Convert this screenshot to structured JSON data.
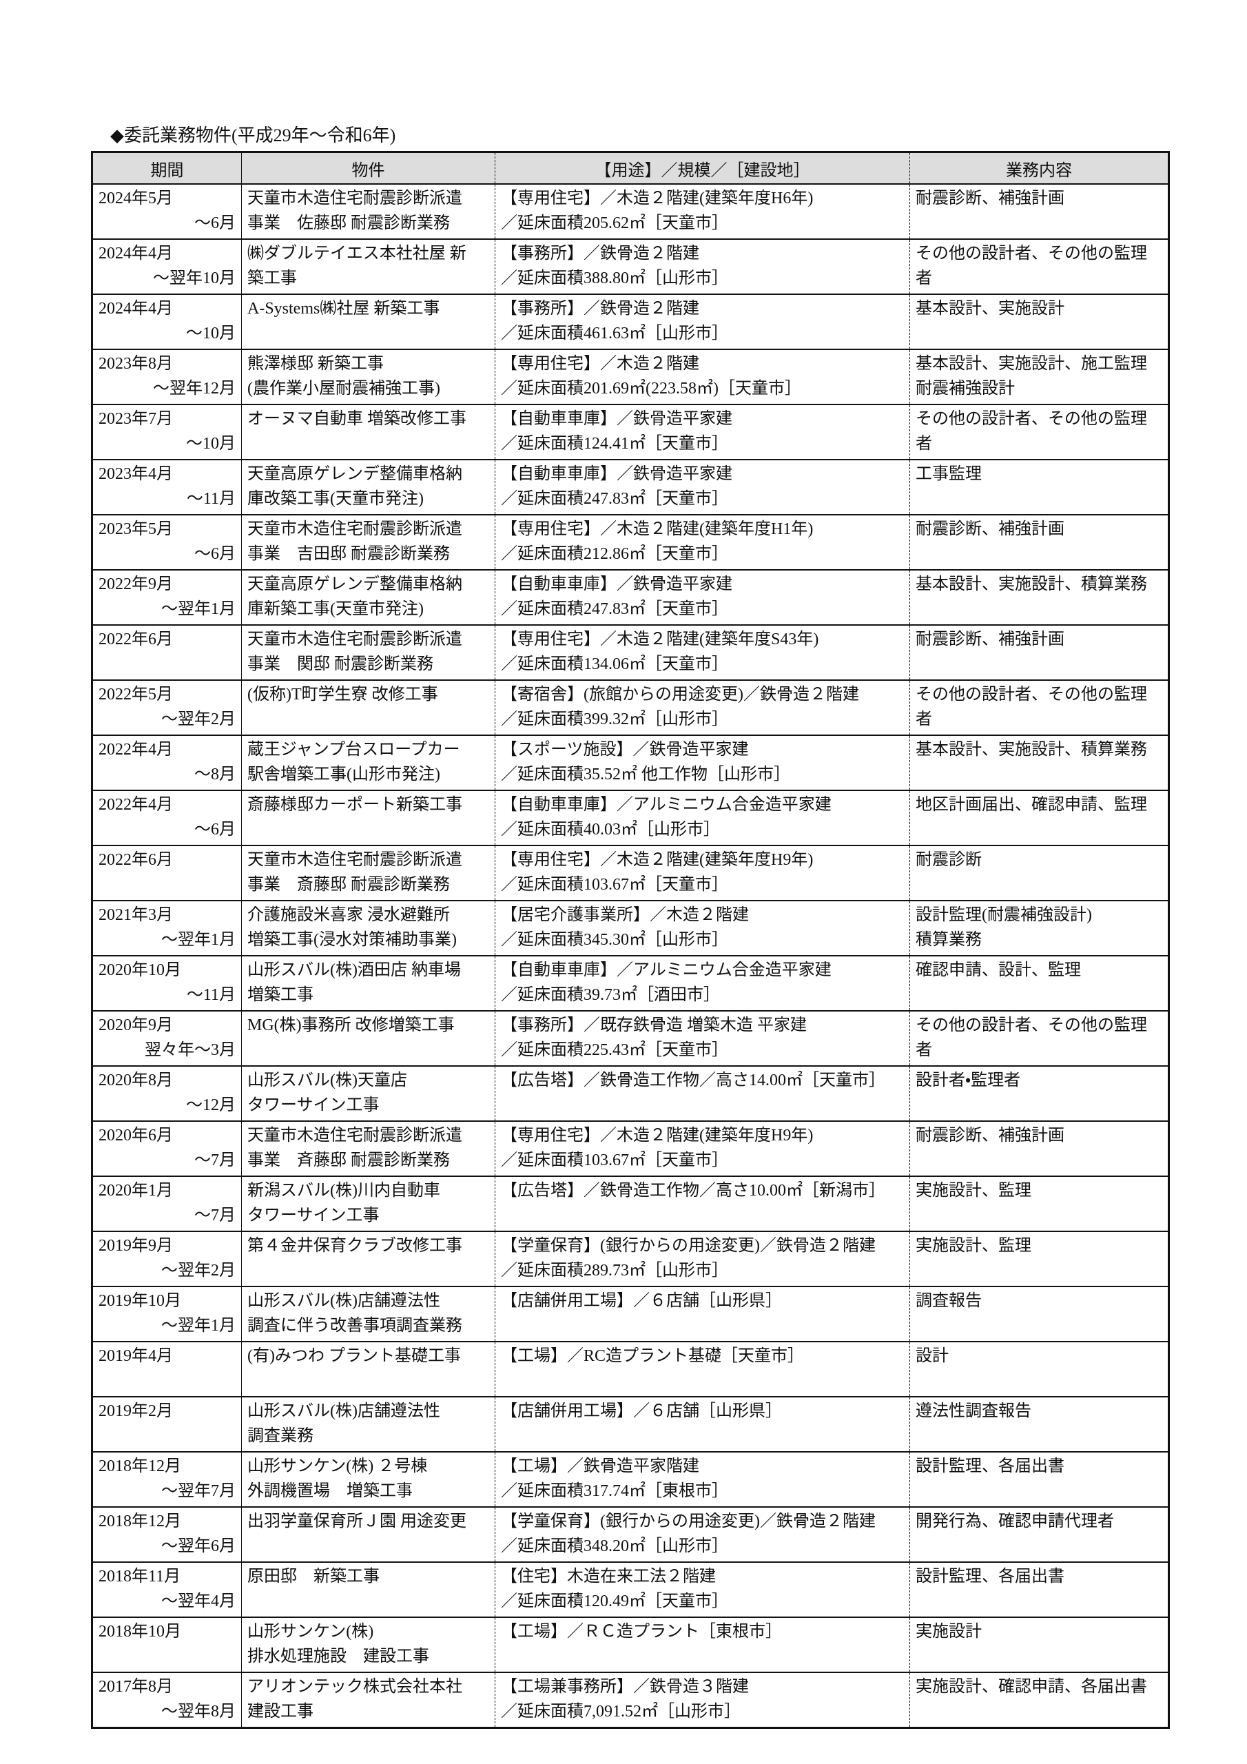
{
  "title": "◆委託業務物件(平成29年～令和6年)",
  "table": {
    "headers": [
      "期間",
      "物件",
      "【用途】／規模／［建設地］",
      "業務内容"
    ],
    "rows": [
      [
        [
          "2024年5月",
          "～6月"
        ],
        [
          "天童市木造住宅耐震診断派遣",
          "事業　佐藤邸 耐震診断業務"
        ],
        [
          "【専用住宅】／木造２階建(建築年度H6年)",
          "／延床面積205.62㎡［天童市］"
        ],
        [
          "耐震診断、補強計画"
        ]
      ],
      [
        [
          "2024年4月",
          "～翌年10月"
        ],
        [
          "㈱ダブルテイエス本社社屋 新",
          "築工事"
        ],
        [
          "【事務所】／鉄骨造２階建",
          "／延床面積388.80㎡［山形市］"
        ],
        [
          "その他の設計者、その他の監理",
          "者"
        ]
      ],
      [
        [
          "2024年4月",
          "～10月"
        ],
        [
          "A-Systems㈱社屋 新築工事"
        ],
        [
          "【事務所】／鉄骨造２階建",
          "／延床面積461.63㎡［山形市］"
        ],
        [
          "基本設計、実施設計"
        ]
      ],
      [
        [
          "2023年8月",
          "～翌年12月"
        ],
        [
          "熊澤様邸 新築工事",
          "(農作業小屋耐震補強工事)"
        ],
        [
          "【専用住宅】／木造２階建",
          "／延床面積201.69㎡(223.58㎡)［天童市］"
        ],
        [
          "基本設計、実施設計、施工監理",
          "耐震補強設計"
        ]
      ],
      [
        [
          "2023年7月",
          "～10月"
        ],
        [
          "オーヌマ自動車 増築改修工事"
        ],
        [
          "【自動車車庫】／鉄骨造平家建",
          "／延床面積124.41㎡［天童市］"
        ],
        [
          "その他の設計者、その他の監理",
          "者"
        ]
      ],
      [
        [
          "2023年4月",
          "～11月"
        ],
        [
          "天童高原ゲレンデ整備車格納",
          "庫改築工事(天童市発注)"
        ],
        [
          "【自動車車庫】／鉄骨造平家建",
          "／延床面積247.83㎡［天童市］"
        ],
        [
          "工事監理"
        ]
      ],
      [
        [
          "2023年5月",
          "～6月"
        ],
        [
          "天童市木造住宅耐震診断派遣",
          "事業　吉田邸 耐震診断業務"
        ],
        [
          "【専用住宅】／木造２階建(建築年度H1年)",
          "／延床面積212.86㎡［天童市］"
        ],
        [
          "耐震診断、補強計画"
        ]
      ],
      [
        [
          "2022年9月",
          "～翌年1月"
        ],
        [
          "天童高原ゲレンデ整備車格納",
          "庫新築工事(天童市発注)"
        ],
        [
          "【自動車車庫】／鉄骨造平家建",
          "／延床面積247.83㎡［天童市］"
        ],
        [
          "基本設計、実施設計、積算業務"
        ]
      ],
      [
        [
          "2022年6月"
        ],
        [
          "天童市木造住宅耐震診断派遣",
          "事業　関邸 耐震診断業務"
        ],
        [
          "【専用住宅】／木造２階建(建築年度S43年)",
          "／延床面積134.06㎡［天童市］"
        ],
        [
          "耐震診断、補強計画"
        ]
      ],
      [
        [
          "2022年5月",
          "～翌年2月"
        ],
        [
          "(仮称)T町学生寮 改修工事"
        ],
        [
          "【寄宿舎】(旅館からの用途変更)／鉄骨造２階建",
          "／延床面積399.32㎡［山形市］"
        ],
        [
          "その他の設計者、その他の監理",
          "者"
        ]
      ],
      [
        [
          "2022年4月",
          "～8月"
        ],
        [
          "蔵王ジャンプ台スロープカー",
          "駅舎増築工事(山形市発注)"
        ],
        [
          "【スポーツ施設】／鉄骨造平家建",
          "／延床面積35.52㎡ 他工作物［山形市］"
        ],
        [
          "基本設計、実施設計、積算業務"
        ]
      ],
      [
        [
          "2022年4月",
          "～6月"
        ],
        [
          "斎藤様邸カーポート新築工事"
        ],
        [
          "【自動車車庫】／アルミニウム合金造平家建",
          "／延床面積40.03㎡［山形市］"
        ],
        [
          "地区計画届出、確認申請、監理"
        ]
      ],
      [
        [
          "2022年6月"
        ],
        [
          "天童市木造住宅耐震診断派遣",
          "事業　斎藤邸 耐震診断業務"
        ],
        [
          "【専用住宅】／木造２階建(建築年度H9年)",
          "／延床面積103.67㎡［天童市］"
        ],
        [
          "耐震診断"
        ]
      ],
      [
        [
          "2021年3月",
          "～翌年1月"
        ],
        [
          "介護施設米喜家 浸水避難所",
          "増築工事(浸水対策補助事業)"
        ],
        [
          "【居宅介護事業所】／木造２階建",
          "／延床面積345.30㎡［山形市］"
        ],
        [
          "設計監理(耐震補強設計)",
          "積算業務"
        ]
      ],
      [
        [
          "2020年10月",
          "～11月"
        ],
        [
          "山形スバル(株)酒田店 納車場",
          "増築工事"
        ],
        [
          "【自動車車庫】／アルミニウム合金造平家建",
          "／延床面積39.73㎡［酒田市］"
        ],
        [
          "確認申請、設計、監理"
        ]
      ],
      [
        [
          "2020年9月",
          "翌々年～3月"
        ],
        [
          "MG(株)事務所 改修増築工事"
        ],
        [
          "【事務所】／既存鉄骨造 増築木造 平家建",
          "／延床面積225.43㎡［天童市］"
        ],
        [
          "その他の設計者、その他の監理",
          "者"
        ]
      ],
      [
        [
          "2020年8月",
          "～12月"
        ],
        [
          "山形スバル(株)天童店",
          "タワーサイン工事"
        ],
        [
          "【広告塔】／鉄骨造工作物／高さ14.00㎡［天童市］"
        ],
        [
          "設計者・監理者"
        ]
      ],
      [
        [
          "2020年6月",
          "～7月"
        ],
        [
          "天童市木造住宅耐震診断派遣",
          "事業　斉藤邸 耐震診断業務"
        ],
        [
          "【専用住宅】／木造２階建(建築年度H9年)",
          "／延床面積103.67㎡［天童市］"
        ],
        [
          "耐震診断、補強計画"
        ]
      ],
      [
        [
          "2020年1月",
          "～7月"
        ],
        [
          "新潟スバル(株)川内自動車",
          "タワーサイン工事"
        ],
        [
          "【広告塔】／鉄骨造工作物／高さ10.00㎡［新潟市］"
        ],
        [
          "実施設計、監理"
        ]
      ],
      [
        [
          "2019年9月",
          "～翌年2月"
        ],
        [
          "第４金井保育クラブ改修工事"
        ],
        [
          "【学童保育】(銀行からの用途変更)／鉄骨造２階建",
          "／延床面積289.73㎡［山形市］"
        ],
        [
          "実施設計、監理"
        ]
      ],
      [
        [
          "2019年10月",
          "～翌年1月"
        ],
        [
          "山形スバル(株)店舗遵法性",
          "調査に伴う改善事項調査業務"
        ],
        [
          "【店舗併用工場】／６店舗［山形県］"
        ],
        [
          "調査報告"
        ]
      ],
      [
        [
          "2019年4月"
        ],
        [
          "(有)みつわ プラント基礎工事"
        ],
        [
          "【工場】／RC造プラント基礎［天童市］"
        ],
        [
          "設計"
        ]
      ],
      [
        [
          "2019年2月"
        ],
        [
          "山形スバル(株)店舗遵法性",
          "調査業務"
        ],
        [
          "【店舗併用工場】／６店舗［山形県］"
        ],
        [
          "遵法性調査報告"
        ]
      ],
      [
        [
          "2018年12月",
          "～翌年7月"
        ],
        [
          "山形サンケン(株) ２号棟",
          "外調機置場　増築工事"
        ],
        [
          "【工場】／鉄骨造平家階建",
          "／延床面積317.74㎡［東根市］"
        ],
        [
          "設計監理、各届出書"
        ]
      ],
      [
        [
          "2018年12月",
          "～翌年6月"
        ],
        [
          "出羽学童保育所Ｊ園 用途変更"
        ],
        [
          "【学童保育】(銀行からの用途変更)／鉄骨造２階建",
          "／延床面積348.20㎡［山形市］"
        ],
        [
          "開発行為、確認申請代理者"
        ]
      ],
      [
        [
          "2018年11月",
          "～翌年4月"
        ],
        [
          "原田邸　新築工事"
        ],
        [
          "【住宅】木造在来工法２階建",
          "／延床面積120.49㎡［天童市］"
        ],
        [
          "設計監理、各届出書"
        ]
      ],
      [
        [
          "2018年10月"
        ],
        [
          "山形サンケン(株)",
          "排水処理施設　建設工事"
        ],
        [
          "【工場】／ＲＣ造プラント［東根市］"
        ],
        [
          "実施設計"
        ]
      ],
      [
        [
          "2017年8月",
          "～翌年8月"
        ],
        [
          "アリオンテック株式会社本社",
          "建設工事"
        ],
        [
          "【工場兼事務所】／鉄骨造３階建",
          "／延床面積7,091.52㎡［山形市］"
        ],
        [
          "実施設計、確認申請、各届出書"
        ]
      ]
    ]
  }
}
